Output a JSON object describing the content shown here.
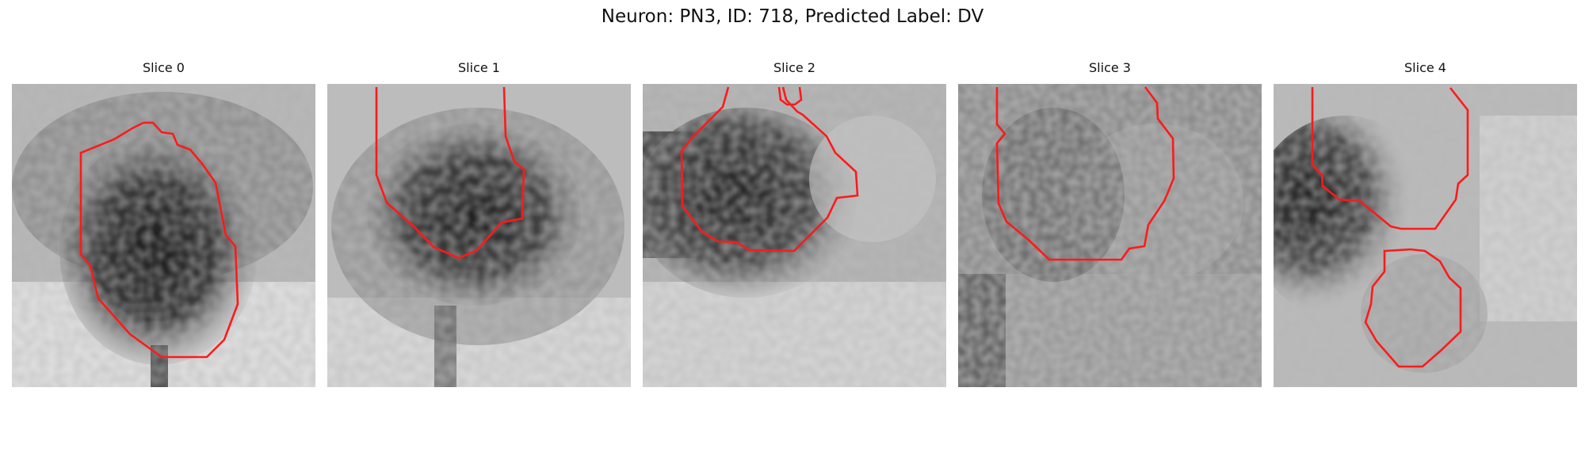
{
  "figure": {
    "title": "Neuron: PN3, ID: 718, Predicted Label: DV"
  },
  "colors": {
    "contour": "#ff1a1a"
  },
  "slices": [
    {
      "title": "Slice 0"
    },
    {
      "title": "Slice 1"
    },
    {
      "title": "Slice 2"
    },
    {
      "title": "Slice 3"
    },
    {
      "title": "Slice 4"
    }
  ]
}
